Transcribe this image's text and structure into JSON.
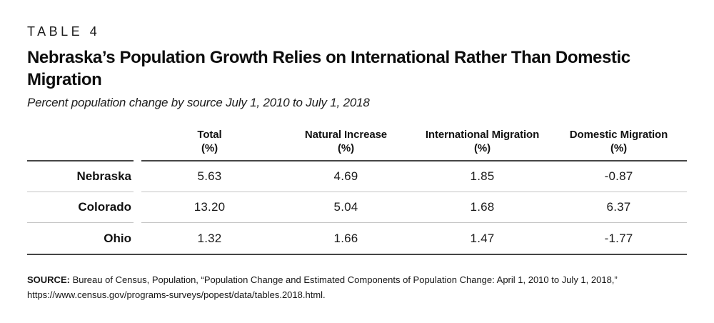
{
  "table_label": "TABLE 4",
  "title": "Nebraska’s Population Growth Relies on International Rather Than Domestic Migration",
  "subtitle": "Percent population change by source July 1, 2010 to July 1, 2018",
  "table": {
    "unit": "(%)",
    "columns": [
      "Total",
      "Natural Increase",
      "International Migration",
      "Domestic Migration"
    ],
    "rows": [
      {
        "label": "Nebraska",
        "values": [
          "5.63",
          "4.69",
          "1.85",
          "-0.87"
        ]
      },
      {
        "label": "Colorado",
        "values": [
          "13.20",
          "5.04",
          "1.68",
          "6.37"
        ]
      },
      {
        "label": "Ohio",
        "values": [
          "1.32",
          "1.66",
          "1.47",
          "-1.77"
        ]
      }
    ]
  },
  "source": {
    "label": "SOURCE:",
    "citation": "Bureau of Census, Population, “Population Change and Estimated Components of Population Change: April 1, 2010 to July 1, 2018,”",
    "url": "https://www.census.gov/programs-surveys/popest/data/tables.2018.html."
  },
  "colors": {
    "rule_dark": "#454545",
    "rule_light": "#c6c6c6",
    "text": "#1a1a1a",
    "background": "#ffffff"
  },
  "chart_data": {
    "type": "table",
    "title": "Nebraska’s Population Growth Relies on International Rather Than Domestic Migration",
    "subtitle": "Percent population change by source July 1, 2010 to July 1, 2018",
    "columns": [
      "",
      "Total (%)",
      "Natural Increase (%)",
      "International Migration (%)",
      "Domestic Migration (%)"
    ],
    "rows": [
      [
        "Nebraska",
        5.63,
        4.69,
        1.85,
        -0.87
      ],
      [
        "Colorado",
        13.2,
        5.04,
        1.68,
        6.37
      ],
      [
        "Ohio",
        1.32,
        1.66,
        1.47,
        -1.77
      ]
    ],
    "source": "SOURCE: Bureau of Census, Population, “Population Change and Estimated Components of Population Change: April 1, 2010 to July 1, 2018,” https://www.census.gov/programs-surveys/popest/data/tables.2018.html."
  }
}
